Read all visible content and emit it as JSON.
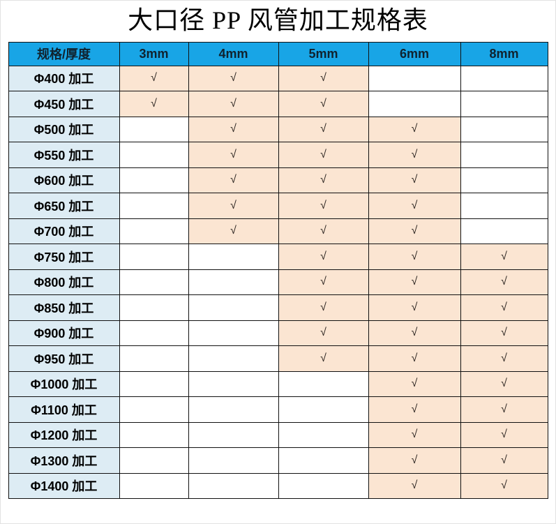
{
  "title": "大口径 PP 风管加工规格表",
  "colors": {
    "header_bg": "#18a5e6",
    "label_bg": "#ddecf4",
    "check_bg": "#fbe5d2",
    "empty_bg": "#ffffff",
    "grid": "#111111"
  },
  "table": {
    "check_mark": "√",
    "header": [
      "规格/厚度",
      "3mm",
      "4mm",
      "5mm",
      "6mm",
      "8mm"
    ],
    "rows": [
      {
        "label": "Φ400 加工",
        "checks": [
          true,
          true,
          true,
          false,
          false
        ]
      },
      {
        "label": "Φ450 加工",
        "checks": [
          true,
          true,
          true,
          false,
          false
        ]
      },
      {
        "label": "Φ500 加工",
        "checks": [
          false,
          true,
          true,
          true,
          false
        ]
      },
      {
        "label": "Φ550 加工",
        "checks": [
          false,
          true,
          true,
          true,
          false
        ]
      },
      {
        "label": "Φ600 加工",
        "checks": [
          false,
          true,
          true,
          true,
          false
        ]
      },
      {
        "label": "Φ650 加工",
        "checks": [
          false,
          true,
          true,
          true,
          false
        ]
      },
      {
        "label": "Φ700 加工",
        "checks": [
          false,
          true,
          true,
          true,
          false
        ]
      },
      {
        "label": "Φ750 加工",
        "checks": [
          false,
          false,
          true,
          true,
          true
        ]
      },
      {
        "label": "Φ800 加工",
        "checks": [
          false,
          false,
          true,
          true,
          true
        ]
      },
      {
        "label": "Φ850 加工",
        "checks": [
          false,
          false,
          true,
          true,
          true
        ]
      },
      {
        "label": "Φ900 加工",
        "checks": [
          false,
          false,
          true,
          true,
          true
        ]
      },
      {
        "label": "Φ950 加工",
        "checks": [
          false,
          false,
          true,
          true,
          true
        ]
      },
      {
        "label": "Φ1000 加工",
        "checks": [
          false,
          false,
          false,
          true,
          true
        ]
      },
      {
        "label": "Φ1100 加工",
        "checks": [
          false,
          false,
          false,
          true,
          true
        ]
      },
      {
        "label": "Φ1200 加工",
        "checks": [
          false,
          false,
          false,
          true,
          true
        ]
      },
      {
        "label": "Φ1300 加工",
        "checks": [
          false,
          false,
          false,
          true,
          true
        ]
      },
      {
        "label": "Φ1400 加工",
        "checks": [
          false,
          false,
          false,
          true,
          true
        ]
      }
    ]
  }
}
